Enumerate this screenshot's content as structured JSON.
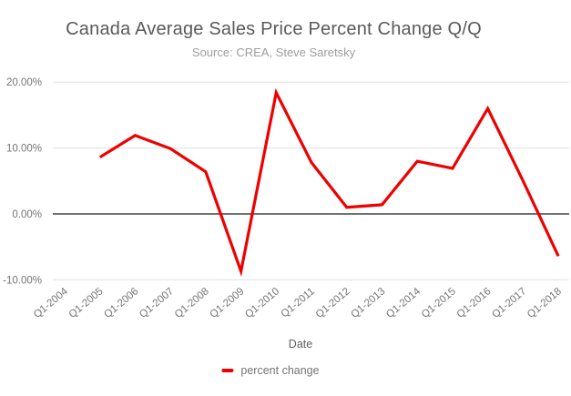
{
  "chart_data": {
    "type": "line",
    "title": "Canada Average Sales Price Percent Change Q/Q",
    "subtitle": "Source: CREA, Steve Saretsky",
    "xlabel": "Date",
    "categories": [
      "Q1-2004",
      "Q1-2005",
      "Q1-2006",
      "Q1-2007",
      "Q1-2008",
      "Q1-2009",
      "Q1-2010",
      "Q1-2011",
      "Q1-2012",
      "Q1-2013",
      "Q1-2014",
      "Q1-2015",
      "Q1-2016",
      "Q1-2017",
      "Q1-2018"
    ],
    "series": [
      {
        "name": "percent change",
        "color": "#ee0000",
        "values": [
          null,
          8.6,
          11.9,
          9.9,
          6.4,
          -8.7,
          18.4,
          7.8,
          1.0,
          1.4,
          8.0,
          6.9,
          16.0,
          5.0,
          -6.4
        ]
      }
    ],
    "y_axis": {
      "ticks": [
        {
          "value": 20,
          "label": "20.00%"
        },
        {
          "value": 10,
          "label": "10.00%"
        },
        {
          "value": 0,
          "label": "0.00%"
        },
        {
          "value": -10,
          "label": "-10.00%"
        }
      ],
      "ylim": [
        -10,
        20
      ]
    },
    "grid": true,
    "legend_position": "bottom",
    "x_tick_rotation_deg": -40
  },
  "colors": {
    "series_red": "#ee0000",
    "gridline": "#e0e0e0",
    "zero_axis": "#424242",
    "tick_text": "#757575",
    "title_text": "#5a5a5a",
    "subtitle_text": "#9e9e9e",
    "axis_title_text": "#616161",
    "background": "#ffffff"
  }
}
